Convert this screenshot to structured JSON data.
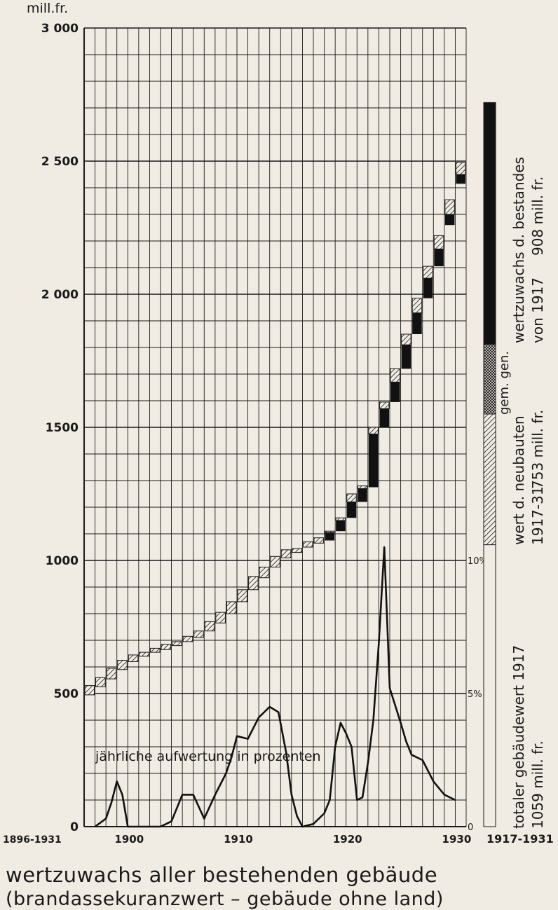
{
  "chart_data": {
    "type": "bar",
    "title": "wertzuwachs aller bestehenden gebäude",
    "subtitle": "(brandassekuranzwert – gebäude ohne land)",
    "ylabel": "mill.fr.",
    "ylim": [
      0,
      3000
    ],
    "xlim": [
      1896,
      1931
    ],
    "x_range_label": "1896-1931",
    "x_tick_labels": [
      "1900",
      "1910",
      "1920",
      "1930"
    ],
    "y_tick_labels": [
      "3 000",
      "2 500",
      "2 000",
      "1500",
      "1000",
      "500",
      "0"
    ],
    "y_ticks": [
      3000,
      2500,
      2000,
      1500,
      1000,
      500,
      0
    ],
    "grid": true,
    "value_series": {
      "name": "wertzuwachs aller bestehenden gebäude",
      "years": [
        1896,
        1897,
        1898,
        1899,
        1900,
        1901,
        1902,
        1903,
        1904,
        1905,
        1906,
        1907,
        1908,
        1909,
        1910,
        1911,
        1912,
        1913,
        1914,
        1915,
        1916,
        1917,
        1918,
        1919,
        1920,
        1921,
        1922,
        1923,
        1924,
        1925,
        1926,
        1927,
        1928,
        1929,
        1930
      ],
      "start": [
        495,
        525,
        555,
        590,
        620,
        640,
        655,
        665,
        680,
        695,
        710,
        735,
        765,
        800,
        845,
        890,
        935,
        975,
        1010,
        1030,
        1050,
        1065,
        1075,
        1110,
        1160,
        1220,
        1275,
        1500,
        1595,
        1720,
        1850,
        1985,
        2105,
        2260,
        2415
      ],
      "new_buildings": [
        35,
        35,
        40,
        35,
        25,
        15,
        15,
        20,
        15,
        20,
        25,
        35,
        40,
        45,
        45,
        50,
        40,
        40,
        30,
        15,
        20,
        20,
        5,
        10,
        30,
        10,
        25,
        25,
        50,
        40,
        55,
        45,
        50,
        55,
        45
      ],
      "revaluation": [
        0,
        0,
        0,
        0,
        0,
        0,
        0,
        0,
        0,
        0,
        0,
        0,
        0,
        0,
        0,
        0,
        0,
        0,
        0,
        0,
        0,
        0,
        30,
        40,
        60,
        50,
        200,
        70,
        75,
        90,
        80,
        75,
        65,
        40,
        35
      ],
      "tops": [
        530,
        560,
        595,
        625,
        645,
        655,
        670,
        685,
        695,
        715,
        735,
        770,
        805,
        845,
        890,
        940,
        975,
        1015,
        1040,
        1045,
        1070,
        1085,
        1110,
        1160,
        1250,
        1280,
        1500,
        1595,
        1720,
        1850,
        1985,
        2105,
        2220,
        2355,
        2495
      ]
    },
    "final_value": 2720,
    "percent_series": {
      "name": "jährliche aufwertung in prozenten",
      "scale_labels": [
        "10%",
        "5%",
        "0"
      ],
      "scale_ticks": [
        10,
        5,
        0
      ],
      "x": [
        1897,
        1898,
        1898.5,
        1899,
        1899.5,
        1900,
        1903,
        1904,
        1904.5,
        1905,
        1906,
        1907,
        1908,
        1909,
        1909.5,
        1910,
        1911,
        1912,
        1913,
        1913.8,
        1914.5,
        1915,
        1915.5,
        1916,
        1917,
        1918,
        1918.5,
        1919,
        1919.5,
        1920,
        1920.5,
        1921,
        1921.5,
        1922,
        1922.5,
        1923,
        1923.5,
        1924,
        1925,
        1925.5,
        1926,
        1927,
        1928,
        1929,
        1930
      ],
      "y": [
        0,
        0.3,
        0.9,
        1.7,
        1.2,
        0,
        0,
        0.2,
        0.7,
        1.2,
        1.2,
        0.3,
        1.2,
        2.0,
        2.6,
        3.4,
        3.3,
        4.1,
        4.5,
        4.3,
        2.8,
        1.2,
        0.4,
        0,
        0.1,
        0.5,
        1.0,
        3.0,
        3.9,
        3.5,
        3.0,
        1.0,
        1.1,
        2.4,
        4.0,
        6.9,
        10.5,
        5.2,
        3.9,
        3.2,
        2.7,
        2.5,
        1.7,
        1.2,
        1.0
      ]
    },
    "side_bar": {
      "x_label": "1917-1931",
      "segments": [
        {
          "name": "totaler gebäudewert 1917",
          "value_label": "1059 mill. fr.",
          "from": 0,
          "to": 1059,
          "fill": "none"
        },
        {
          "name": "wert d. neubauten",
          "period": "1917-31",
          "value_label": "753 mill. fr.",
          "from": 1059,
          "to": 1550,
          "fill": "hatch"
        },
        {
          "name": "gem. gen.",
          "from": 1550,
          "to": 1812,
          "fill": "crosshatch"
        },
        {
          "name": "wertzuwachs d. bestandes",
          "period": "von 1917",
          "value_label": "908 mill. fr.",
          "from": 1812,
          "to": 2720,
          "fill": "solid"
        }
      ]
    }
  }
}
